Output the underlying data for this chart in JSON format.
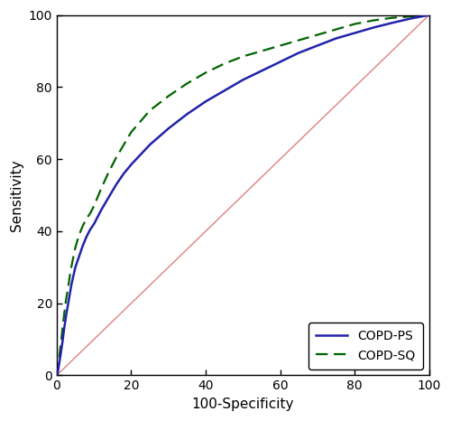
{
  "xlabel": "100-Specificity",
  "ylabel": "Sensitivity",
  "xlim": [
    0,
    100
  ],
  "ylim": [
    0,
    100
  ],
  "xticks": [
    0,
    20,
    40,
    60,
    80,
    100
  ],
  "yticks": [
    0,
    20,
    40,
    60,
    80,
    100
  ],
  "reference_line_color": "#e08080",
  "copd_ps_color": "#2222aa",
  "copd_sq_color": "#006400",
  "legend_labels": [
    "COPD-PS",
    "COPD-SQ"
  ],
  "copd_ps_x": [
    0,
    0.3,
    0.6,
    1.0,
    1.5,
    2.0,
    2.5,
    3.0,
    3.5,
    4.0,
    5.0,
    6.0,
    7.0,
    8.0,
    9.0,
    10.0,
    12.0,
    14.0,
    16.0,
    18.0,
    20.0,
    25.0,
    30.0,
    35.0,
    40.0,
    45.0,
    50.0,
    55.0,
    60.0,
    65.0,
    70.0,
    75.0,
    80.0,
    85.0,
    90.0,
    95.0,
    100.0
  ],
  "copd_ps_y": [
    0,
    1.0,
    3.0,
    5.5,
    9.0,
    13.0,
    16.5,
    19.5,
    22.5,
    25.5,
    30.0,
    33.0,
    36.0,
    38.5,
    40.5,
    42.0,
    46.0,
    49.5,
    53.0,
    56.0,
    58.5,
    64.0,
    68.5,
    72.5,
    76.0,
    79.0,
    82.0,
    84.5,
    87.0,
    89.5,
    91.5,
    93.5,
    95.0,
    96.5,
    97.8,
    99.0,
    100.0
  ],
  "copd_sq_x": [
    0,
    0.3,
    0.6,
    1.0,
    1.5,
    2.0,
    2.5,
    3.0,
    3.5,
    4.0,
    5.0,
    6.0,
    7.0,
    8.0,
    9.0,
    10.0,
    12.0,
    14.0,
    16.0,
    18.0,
    20.0,
    25.0,
    30.0,
    35.0,
    40.0,
    45.0,
    50.0,
    55.0,
    60.0,
    65.0,
    70.0,
    75.0,
    80.0,
    85.0,
    90.0,
    95.0,
    100.0
  ],
  "copd_sq_y": [
    0,
    1.5,
    4.5,
    8.0,
    12.5,
    17.0,
    21.0,
    24.0,
    27.5,
    30.5,
    35.5,
    39.0,
    41.5,
    43.5,
    45.0,
    47.0,
    52.0,
    56.5,
    60.5,
    64.0,
    67.5,
    73.5,
    77.5,
    81.0,
    84.0,
    86.5,
    88.5,
    90.0,
    91.5,
    93.0,
    94.5,
    96.0,
    97.5,
    98.5,
    99.2,
    99.6,
    100.0
  ]
}
